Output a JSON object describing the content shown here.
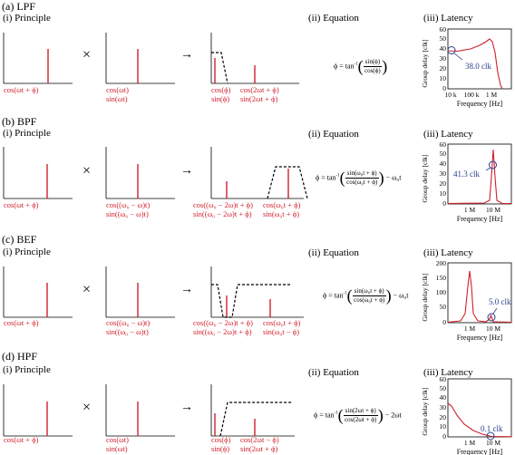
{
  "sections": [
    {
      "title": "(a) LPF",
      "principle_label": "(i) Principle",
      "equation_label": "(ii) Equation",
      "latency_label": "(iii) Latency",
      "input_labels": [
        "cos(ωt + ϕ)"
      ],
      "lo_labels": [
        "cos(ωt)",
        "sin(ωt)"
      ],
      "out_labels_left": [
        "cos(ϕ)",
        "sin(ϕ)"
      ],
      "out_labels_right": [
        "cos(2ωt + ϕ)",
        "sin(2ωt + ϕ)"
      ],
      "equation": {
        "lhs": "ϕ = tan",
        "num": "sin(ϕ)",
        "den": "cos(ϕ)",
        "tail": ""
      },
      "latency": {
        "annotation": "38.0 clk",
        "xticks": [
          "10 k",
          "100 k",
          "1 M"
        ],
        "yticks": [
          "0",
          "10",
          "20",
          "30",
          "40",
          "50",
          "60"
        ],
        "ylim": [
          0,
          60
        ]
      }
    },
    {
      "title": "(b) BPF",
      "principle_label": "(i) Principle",
      "equation_label": "(ii) Equation",
      "latency_label": "(iii) Latency",
      "input_labels": [
        "cos(ωt + ϕ)"
      ],
      "lo_labels": [
        "cos((ω₀ − ω)t)",
        "sin((ω₀ − ω)t)"
      ],
      "out_labels_left": [
        "cos((ω₀ − 2ω)t + ϕ)",
        "sin((ω₀ − 2ω)t + ϕ)"
      ],
      "out_labels_right": [
        "cos(ω₀t + ϕ)",
        "sin(ω₀t + ϕ)"
      ],
      "equation": {
        "lhs": "ϕ = tan",
        "num": "sin(ω₀t + ϕ)",
        "den": "cos(ω₀t + ϕ)",
        "tail": "− ω₀t"
      },
      "latency": {
        "annotation": "41.3 clk",
        "xticks": [
          "1 M",
          "10 M"
        ],
        "yticks": [
          "0",
          "10",
          "20",
          "30",
          "40",
          "50",
          "60"
        ],
        "ylim": [
          0,
          60
        ]
      }
    },
    {
      "title": "(c) BEF",
      "principle_label": "(i) Principle",
      "equation_label": "(ii) Equation",
      "latency_label": "(iii) Latency",
      "input_labels": [
        "cos(ωt + ϕ)"
      ],
      "lo_labels": [
        "cos((ω₀ − ω)t)",
        "sin((ω₀ − ω)t)"
      ],
      "out_labels_left": [
        "cos((ω₀ − 2ω)t + ϕ)",
        "sin((ω₀ − 2ω)t + ϕ)"
      ],
      "out_labels_right": [
        "cos(ω₀t + ϕ)",
        "sin(ω₀t − ϕ)"
      ],
      "equation": {
        "lhs": "ϕ = tan",
        "num": "sin(ω₀t + ϕ)",
        "den": "cos(ω₀t + ϕ)",
        "tail": "− ω₀t"
      },
      "latency": {
        "annotation": "5.0 clk",
        "xticks": [
          "1 M",
          "10 M"
        ],
        "yticks": [
          "0",
          "50",
          "100",
          "150",
          "200"
        ],
        "ylim": [
          0,
          200
        ]
      }
    },
    {
      "title": "(d) HPF",
      "principle_label": "(i) Principle",
      "equation_label": "(ii) Equation",
      "latency_label": "(iii) Latency",
      "input_labels": [
        "cos(ωt + ϕ)"
      ],
      "lo_labels": [
        "cos(ωt)",
        "sin(ωt)"
      ],
      "out_labels_left": [
        "cos(ϕ)",
        "sin(ϕ)"
      ],
      "out_labels_right": [
        "cos(2ωt − ϕ)",
        "sin(2ωt + ϕ)"
      ],
      "equation": {
        "lhs": "ϕ = tan",
        "num": "sin(2ωt + ϕ)",
        "den": "cos(2ωt + ϕ)",
        "tail": "− 2ωt"
      },
      "latency": {
        "annotation": "0.1 clk",
        "xticks": [
          "1 M",
          "10 M"
        ],
        "yticks": [
          "0",
          "10",
          "20",
          "30",
          "40",
          "50",
          "60"
        ],
        "ylim": [
          0,
          60
        ]
      }
    }
  ],
  "common": {
    "x_axis_label": "Frequency [Hz]",
    "y_axis_label": "Group delay [clk]",
    "times_symbol": "×",
    "arrow_symbol": "→",
    "inverse_sup": "-1"
  },
  "colors": {
    "signal": "#d0202c",
    "curve": "#d0202c",
    "annotation": "#2a3e8c",
    "axis": "#000000"
  }
}
